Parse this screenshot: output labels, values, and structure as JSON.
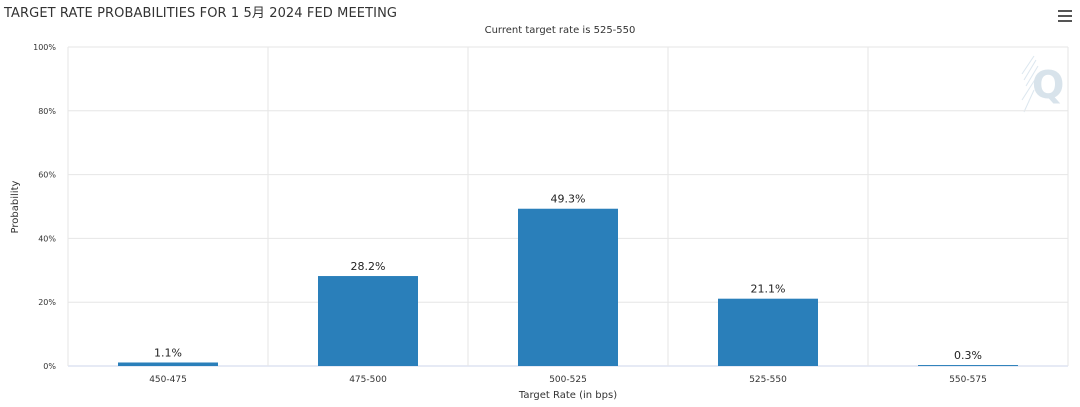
{
  "chart_title": "TARGET RATE PROBABILITIES FOR 1 5月 2024 FED MEETING",
  "chart_subtitle": "Current target rate is 525-550",
  "menu": {
    "icon": "hamburger-menu-icon"
  },
  "colors": {
    "bar": "#2a7fba",
    "grid": "#e6e6e6",
    "axis": "#ccd6eb",
    "text": "#333333"
  },
  "chart_data": {
    "type": "bar",
    "title": "TARGET RATE PROBABILITIES FOR 1 5月 2024 FED MEETING",
    "subtitle": "Current target rate is 525-550",
    "categories": [
      "450-475",
      "475-500",
      "500-525",
      "525-550",
      "550-575"
    ],
    "values": [
      1.1,
      28.2,
      49.3,
      21.1,
      0.3
    ],
    "data_labels": [
      "1.1%",
      "28.2%",
      "49.3%",
      "21.1%",
      "0.3%"
    ],
    "xlabel": "Target Rate (in bps)",
    "ylabel": "Probability",
    "ylim": [
      0,
      100
    ],
    "yticks": [
      0,
      20,
      40,
      60,
      80,
      100
    ],
    "ytick_labels": [
      "0%",
      "20%",
      "40%",
      "60%",
      "80%",
      "100%"
    ],
    "grid": true,
    "legend": "none"
  }
}
